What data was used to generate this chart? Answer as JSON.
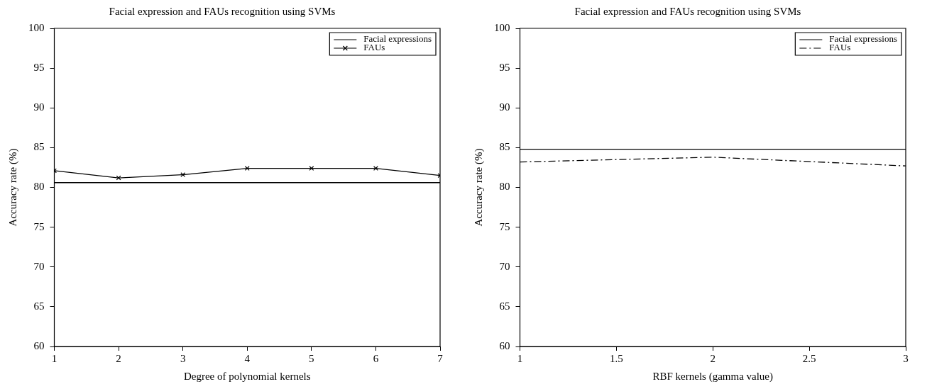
{
  "chart_data": [
    {
      "type": "line",
      "title": "Facial expression and FAUs recognition using SVMs",
      "xlabel": "Degree of polynomial kernels",
      "ylabel": "Accuracy rate (%)",
      "x": [
        1,
        2,
        3,
        4,
        5,
        6,
        7
      ],
      "xlim": [
        1,
        7
      ],
      "xticks": [
        1,
        2,
        3,
        4,
        5,
        6,
        7
      ],
      "ylim": [
        60,
        100
      ],
      "yticks": [
        60,
        65,
        70,
        75,
        80,
        85,
        90,
        95,
        100
      ],
      "grid": false,
      "legend": "top right",
      "series": [
        {
          "name": "Facial expressions",
          "color": "#000000",
          "values": [
            80.6,
            80.6,
            80.6,
            80.6,
            80.6,
            80.6,
            80.6
          ],
          "marker": "none",
          "line_style": "solid"
        },
        {
          "name": "FAUs",
          "color": "#000000",
          "values": [
            82.1,
            81.2,
            81.6,
            82.4,
            82.4,
            82.4,
            81.5
          ],
          "marker": "cross",
          "line_style": "solid"
        }
      ]
    },
    {
      "type": "line",
      "title": "Facial expression and FAUs recognition using SVMs",
      "xlabel": "RBF kernels (gamma value)",
      "ylabel": "Accuracy rate (%)",
      "x": [
        1,
        2,
        3
      ],
      "xlim": [
        1,
        3
      ],
      "xticks": [
        1,
        1.5,
        2,
        2.5,
        3
      ],
      "ylim": [
        60,
        100
      ],
      "yticks": [
        60,
        65,
        70,
        75,
        80,
        85,
        90,
        95,
        100
      ],
      "grid": false,
      "legend": "top right",
      "series": [
        {
          "name": "Facial expressions",
          "color": "#000000",
          "values": [
            84.8,
            84.8,
            84.8
          ],
          "marker": "none",
          "line_style": "solid"
        },
        {
          "name": "FAUs",
          "color": "#000000",
          "values": [
            83.2,
            83.8,
            82.7
          ],
          "marker": "none",
          "line_style": "dashed"
        }
      ]
    }
  ]
}
